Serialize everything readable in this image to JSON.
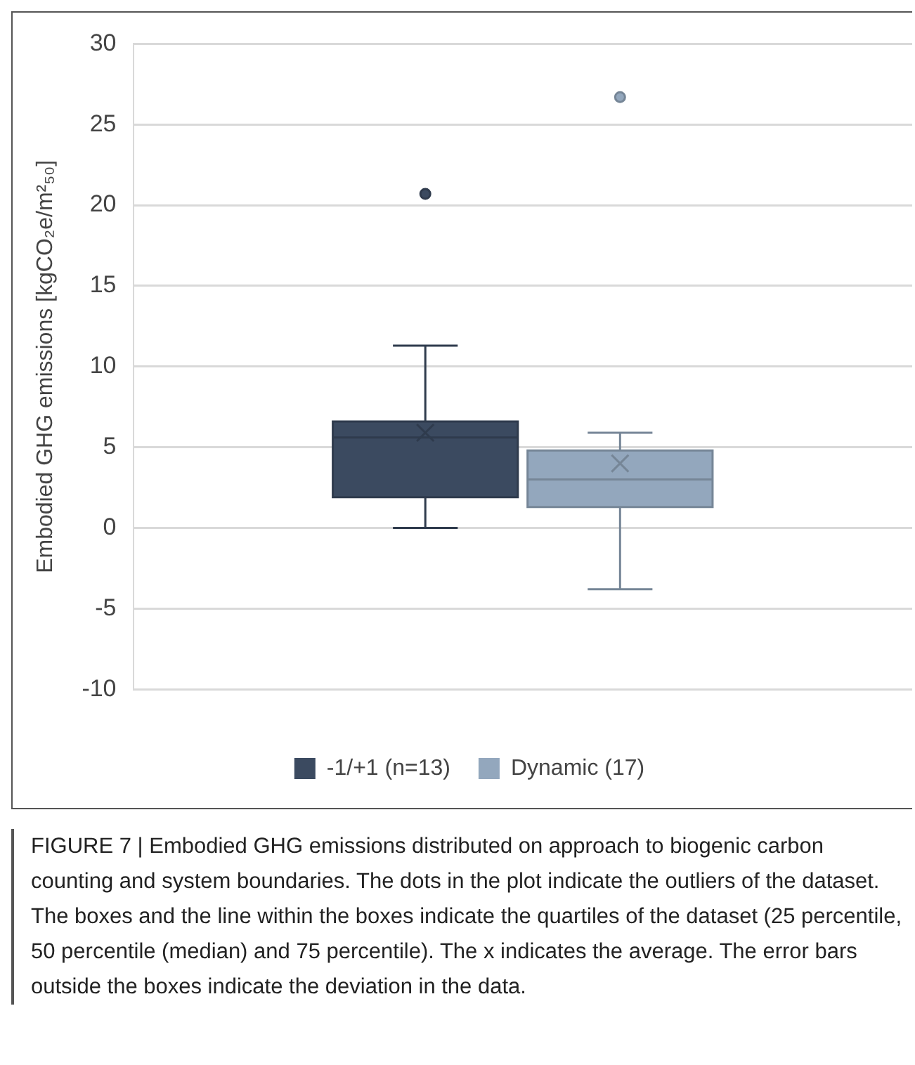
{
  "chart_data": {
    "type": "box",
    "ylabel": "Embodied GHG emissions [kgCO₂e/m²₅₀]",
    "categories": [
      null
    ],
    "series": [
      {
        "name": "-1/+1 (n=13)",
        "color": "#3b4a60",
        "boxes": [
          {
            "low": 0,
            "q1": 1.9,
            "median": 5.6,
            "q3": 6.6,
            "high": 11.3,
            "mean": 5.9,
            "outliers": [
              20.7
            ]
          }
        ]
      },
      {
        "name": "Dynamic (17)",
        "color": "#93a7bd",
        "boxes": [
          {
            "low": -3.8,
            "q1": 1.3,
            "median": 3.0,
            "q3": 4.8,
            "high": 5.9,
            "mean": 4.0,
            "outliers": [
              26.7
            ]
          }
        ]
      }
    ],
    "ylim": [
      -10,
      30
    ],
    "yticks": [
      -10,
      -5,
      0,
      5,
      10,
      15,
      20,
      25,
      30
    ],
    "grid": "y",
    "legend": "bottom",
    "annotations": [
      "FIGURE 7 | Embodied GHG emissions distributed on approach to biogenic carbon counting and system boundaries. The dots in the plot indicate the outliers of the dataset. The boxes and the line within the boxes indicate the quartiles of the dataset (25 percentile, 50 percentile (median) and 75 percentile). The x indicates the average. The error bars outside the boxes indicate the deviation in the data."
    ]
  }
}
